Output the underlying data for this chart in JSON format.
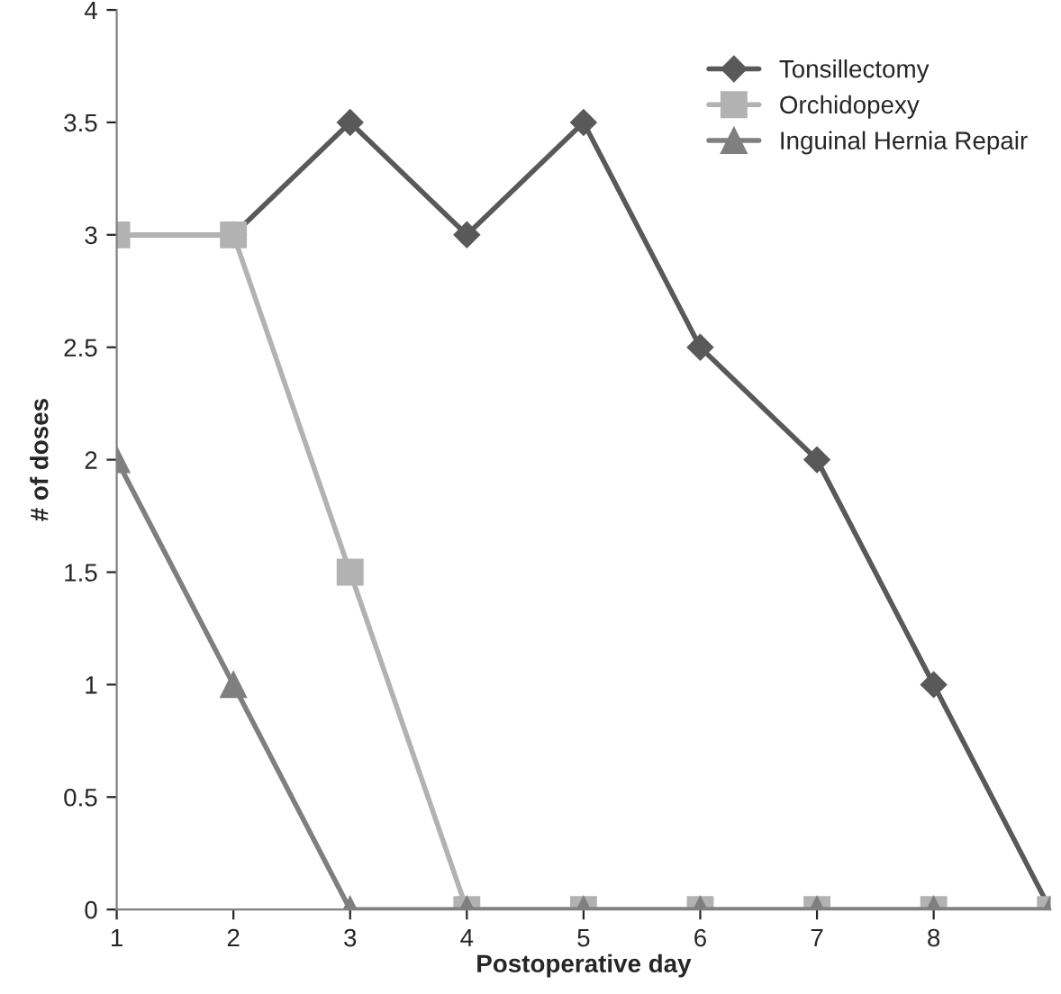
{
  "chart_data": {
    "type": "line",
    "xlabel": "Postoperative day",
    "ylabel": "# of doses",
    "x": [
      1,
      2,
      3,
      4,
      5,
      6,
      7,
      8,
      9
    ],
    "series": [
      {
        "name": "Tonsillectomy",
        "color": "#595959",
        "marker": "diamond",
        "values": [
          3,
          3,
          3.5,
          3,
          3.5,
          2.5,
          2,
          1,
          0
        ]
      },
      {
        "name": "Orchidopexy",
        "color": "#b2b2b2",
        "marker": "square",
        "values": [
          3,
          3,
          1.5,
          0,
          0,
          0,
          0,
          0,
          0
        ]
      },
      {
        "name": "Inguinal Hernia Repair",
        "color": "#7f7f7f",
        "marker": "triangle",
        "values": [
          2,
          1,
          0,
          0,
          0,
          0,
          0,
          0,
          0
        ]
      }
    ],
    "xlim": [
      1,
      9
    ],
    "xticks": [
      1,
      2,
      3,
      4,
      5,
      6,
      7,
      8
    ],
    "ylim": [
      0,
      4
    ],
    "yticks": [
      0,
      0.5,
      1,
      1.5,
      2,
      2.5,
      3,
      3.5,
      4
    ],
    "grid": false,
    "legend": "top right",
    "line_style": "solid"
  }
}
